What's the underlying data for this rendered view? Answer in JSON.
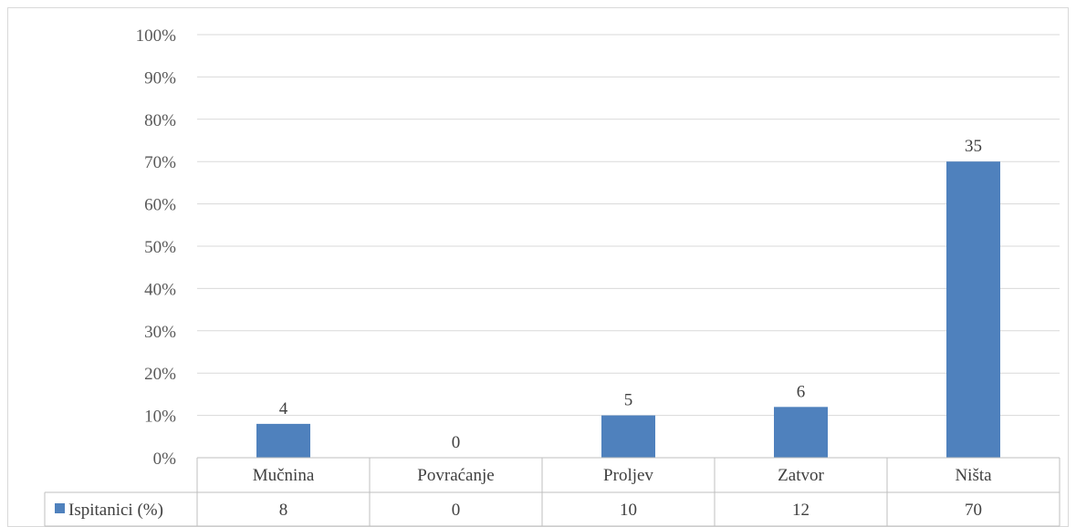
{
  "chart_data": {
    "type": "bar",
    "categories": [
      "Mučnina",
      "Povraćanje",
      "Proljev",
      "Zatvor",
      "Ništa"
    ],
    "series": [
      {
        "name": "Ispitanici (%)",
        "values": [
          8,
          0,
          10,
          12,
          70
        ],
        "data_labels": [
          "4",
          "0",
          "5",
          "6",
          "35"
        ]
      }
    ],
    "y_tick_labels": [
      "0%",
      "10%",
      "20%",
      "30%",
      "40%",
      "50%",
      "60%",
      "70%",
      "80%",
      "90%",
      "100%"
    ],
    "ylim": [
      0,
      100
    ],
    "grid": true,
    "legend": "data-table",
    "title": "",
    "xlabel": "",
    "ylabel": "",
    "colors": {
      "bar": "#4f81bd",
      "grid": "#d9d9d9",
      "table_border": "#bfbfbf"
    }
  }
}
